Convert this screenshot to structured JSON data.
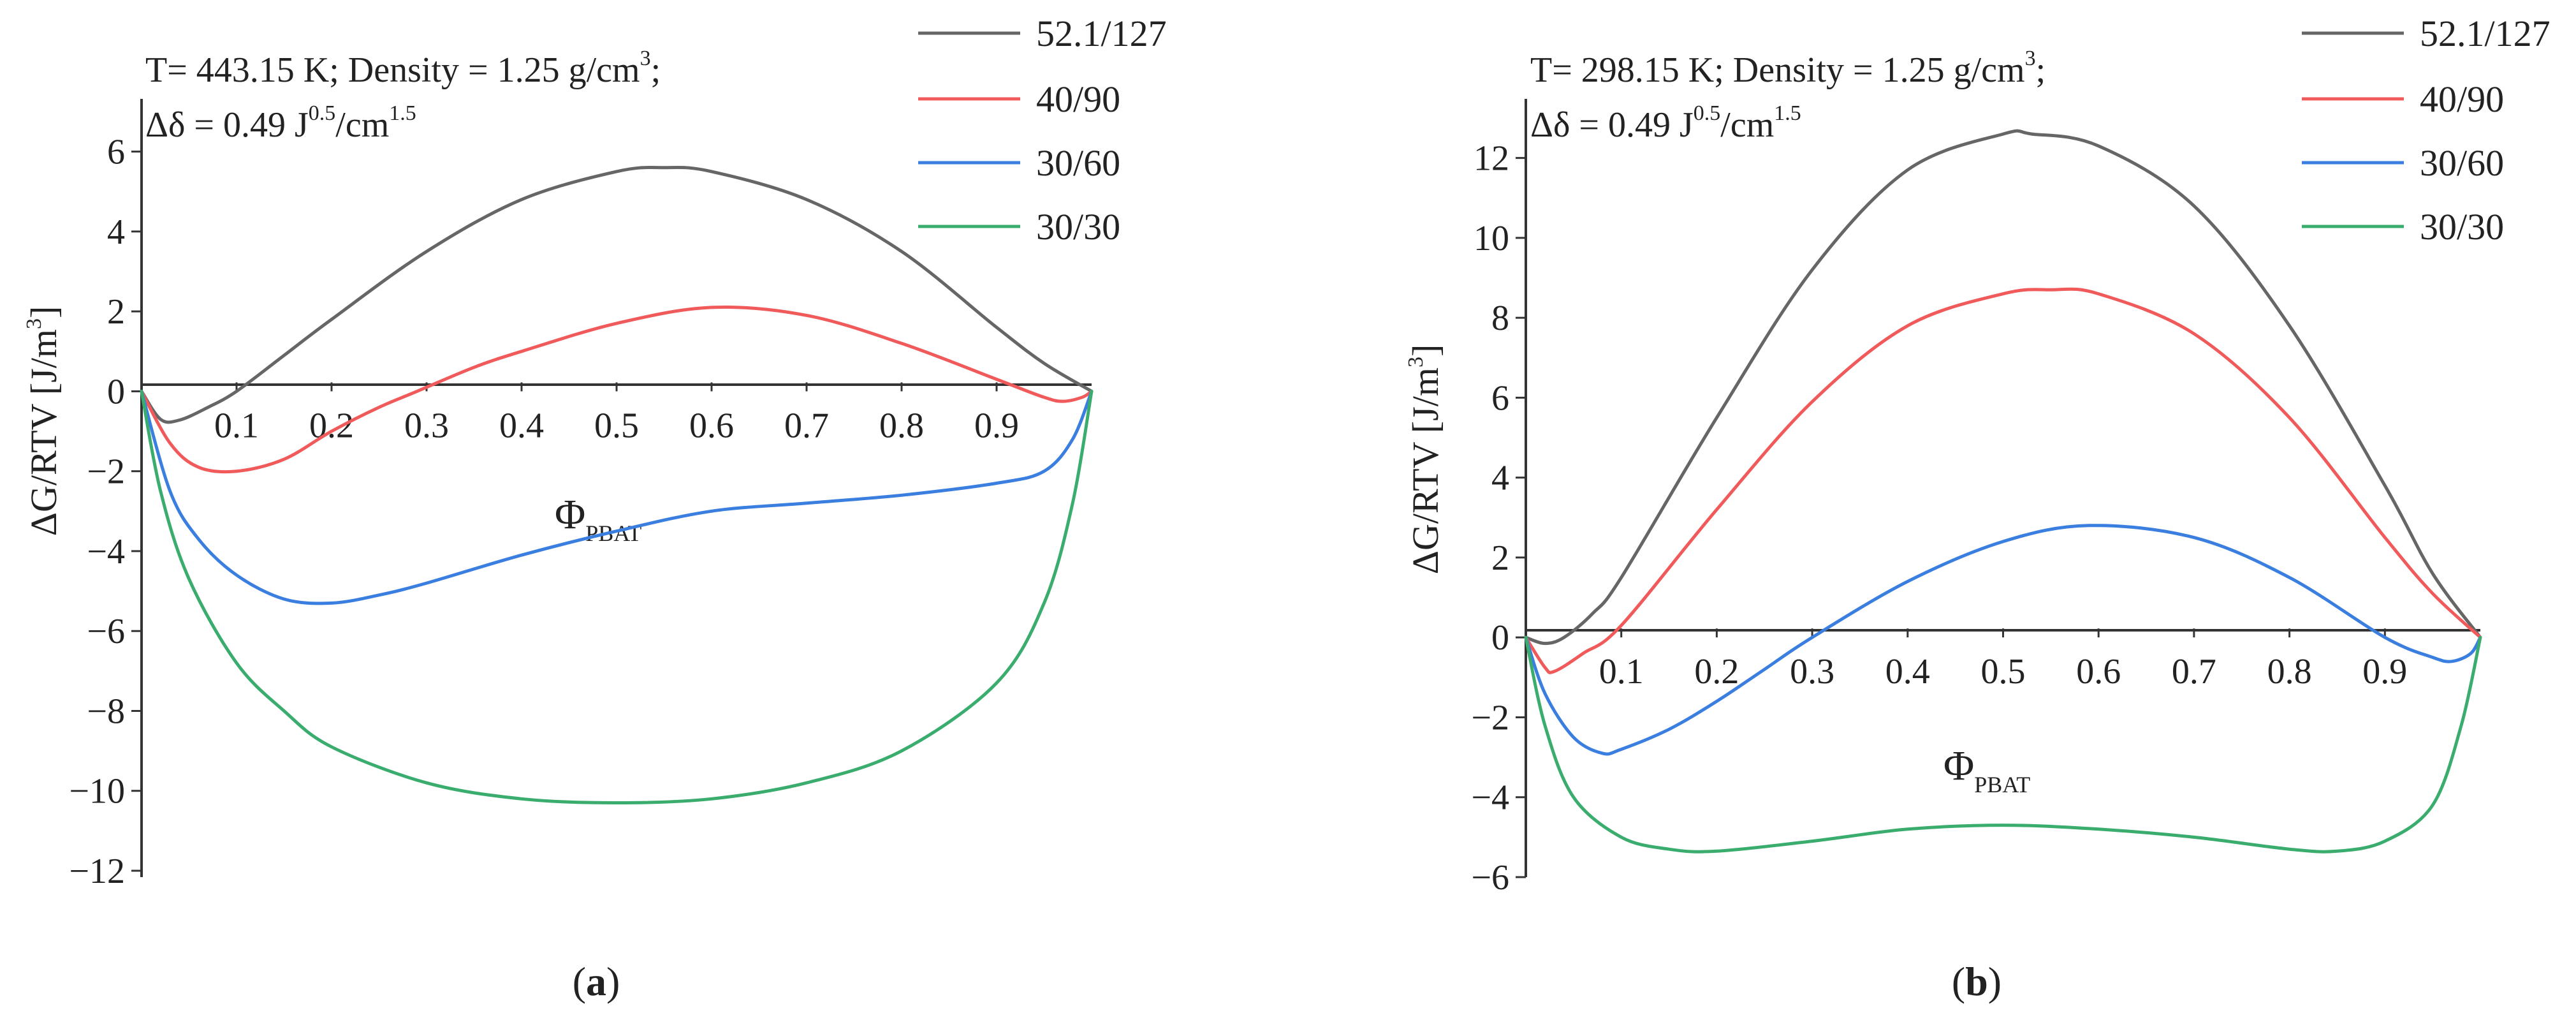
{
  "chart_data": [
    {
      "type": "line",
      "panel_label": {
        "open": "(",
        "letter": "a",
        "close": ")"
      },
      "annotation": {
        "line1_prefix": "T= 443.15 K; Density = 1.25 g/cm",
        "line1_sup": "3",
        "line1_suffix": ";",
        "line2_prefix": "Δδ = 0.49 J",
        "line2_sup1": "0.5",
        "line2_mid": "/cm",
        "line2_sup2": "1.5"
      },
      "ylabel": {
        "main": "ΔG/RTV [J/m",
        "sup": "3",
        "close": "]"
      },
      "xlabel": {
        "main": "Φ",
        "sub": "PBAT"
      },
      "xlim": [
        0,
        1
      ],
      "ylim": [
        -12,
        7
      ],
      "x_ticks": [
        0.1,
        0.2,
        0.3,
        0.4,
        0.5,
        0.6,
        0.7,
        0.8,
        0.9
      ],
      "x_tick_labels": [
        "0.1",
        "0.2",
        "0.3",
        "0.4",
        "0.5",
        "0.6",
        "0.7",
        "0.8",
        "0.9"
      ],
      "y_ticks": [
        6,
        4,
        2,
        0,
        -2,
        -4,
        -6,
        -8,
        -10,
        -12
      ],
      "y_tick_labels": [
        "6",
        "4",
        "2",
        "0",
        "−2",
        "−4",
        "−6",
        "−8",
        "−10",
        "−12"
      ],
      "series": [
        {
          "name": "52.1/127",
          "color": "#666666",
          "x": [
            0,
            0.02,
            0.04,
            0.07,
            0.1,
            0.15,
            0.2,
            0.3,
            0.4,
            0.5,
            0.55,
            0.6,
            0.7,
            0.8,
            0.9,
            0.95,
            1.0
          ],
          "y": [
            0,
            -0.7,
            -0.72,
            -0.4,
            0.0,
            0.9,
            1.8,
            3.5,
            4.8,
            5.5,
            5.6,
            5.5,
            4.8,
            3.5,
            1.6,
            0.7,
            0
          ]
        },
        {
          "name": "40/90",
          "color": "#f05a5a",
          "x": [
            0,
            0.03,
            0.06,
            0.1,
            0.15,
            0.2,
            0.25,
            0.29,
            0.35,
            0.4,
            0.5,
            0.6,
            0.7,
            0.8,
            0.9,
            0.95,
            0.97,
            0.99,
            1.0
          ],
          "y": [
            0,
            -1.3,
            -1.9,
            -2.0,
            -1.7,
            -1.0,
            -0.4,
            0.0,
            0.6,
            1.0,
            1.7,
            2.1,
            1.9,
            1.2,
            0.3,
            -0.15,
            -0.25,
            -0.15,
            0
          ]
        },
        {
          "name": "30/60",
          "color": "#3a7fe0",
          "x": [
            0,
            0.03,
            0.06,
            0.1,
            0.15,
            0.2,
            0.25,
            0.3,
            0.4,
            0.5,
            0.6,
            0.7,
            0.8,
            0.9,
            0.95,
            0.98,
            1.0
          ],
          "y": [
            0,
            -2.5,
            -3.7,
            -4.6,
            -5.2,
            -5.3,
            -5.1,
            -4.8,
            -4.1,
            -3.5,
            -3.0,
            -2.8,
            -2.6,
            -2.3,
            -2.0,
            -1.2,
            0
          ]
        },
        {
          "name": "30/30",
          "color": "#3aad6e",
          "x": [
            0,
            0.02,
            0.05,
            0.1,
            0.15,
            0.2,
            0.3,
            0.4,
            0.5,
            0.6,
            0.7,
            0.8,
            0.9,
            0.95,
            0.98,
            1.0
          ],
          "y": [
            0,
            -2.5,
            -4.7,
            -6.8,
            -8.0,
            -8.9,
            -9.8,
            -10.2,
            -10.3,
            -10.2,
            -9.8,
            -9.0,
            -7.3,
            -5.3,
            -2.8,
            0
          ]
        }
      ]
    },
    {
      "type": "line",
      "panel_label": {
        "open": "(",
        "letter": "b",
        "close": ")"
      },
      "annotation": {
        "line1_prefix": "T= 298.15 K; Density = 1.25 g/cm",
        "line1_sup": "3",
        "line1_suffix": ";",
        "line2_prefix": "Δδ = 0.49 J",
        "line2_sup1": "0.5",
        "line2_mid": "/cm",
        "line2_sup2": "1.5"
      },
      "ylabel": {
        "main": "ΔG/RTV [J/m",
        "sup": "3",
        "close": "]"
      },
      "xlabel": {
        "main": "Φ",
        "sub": "PBAT"
      },
      "xlim": [
        0,
        1
      ],
      "ylim": [
        -6,
        13
      ],
      "x_ticks": [
        0.1,
        0.2,
        0.3,
        0.4,
        0.5,
        0.6,
        0.7,
        0.8,
        0.9
      ],
      "x_tick_labels": [
        "0.1",
        "0.2",
        "0.3",
        "0.4",
        "0.5",
        "0.6",
        "0.7",
        "0.8",
        "0.9"
      ],
      "y_ticks": [
        12,
        10,
        8,
        6,
        4,
        2,
        0,
        -2,
        -4,
        -6
      ],
      "y_tick_labels": [
        "12",
        "10",
        "8",
        "6",
        "4",
        "2",
        "0",
        "−2",
        "−4",
        "−6"
      ],
      "series": [
        {
          "name": "52.1/127",
          "color": "#666666",
          "x": [
            0,
            0.02,
            0.04,
            0.07,
            0.1,
            0.2,
            0.3,
            0.4,
            0.5,
            0.53,
            0.6,
            0.7,
            0.8,
            0.9,
            0.95,
            1.0
          ],
          "y": [
            0,
            -0.15,
            0.0,
            0.6,
            1.5,
            5.5,
            9.2,
            11.7,
            12.6,
            12.6,
            12.3,
            10.8,
            7.8,
            3.8,
            1.6,
            0
          ]
        },
        {
          "name": "40/90",
          "color": "#f05a5a",
          "x": [
            0,
            0.02,
            0.03,
            0.06,
            0.1,
            0.2,
            0.3,
            0.4,
            0.5,
            0.55,
            0.6,
            0.7,
            0.8,
            0.9,
            0.95,
            1.0
          ],
          "y": [
            0,
            -0.75,
            -0.85,
            -0.4,
            0.3,
            3.2,
            5.9,
            7.8,
            8.6,
            8.7,
            8.6,
            7.6,
            5.5,
            2.5,
            1.1,
            0
          ]
        },
        {
          "name": "30/60",
          "color": "#3a7fe0",
          "x": [
            0,
            0.02,
            0.05,
            0.08,
            0.1,
            0.15,
            0.2,
            0.25,
            0.3,
            0.4,
            0.5,
            0.59,
            0.7,
            0.8,
            0.9,
            0.95,
            0.97,
            0.99,
            1.0
          ],
          "y": [
            0,
            -1.4,
            -2.5,
            -2.9,
            -2.8,
            -2.3,
            -1.6,
            -0.8,
            0.0,
            1.4,
            2.4,
            2.8,
            2.5,
            1.5,
            0.0,
            -0.5,
            -0.6,
            -0.4,
            0
          ]
        },
        {
          "name": "30/30",
          "color": "#3aad6e",
          "x": [
            0,
            0.02,
            0.05,
            0.1,
            0.15,
            0.2,
            0.3,
            0.4,
            0.5,
            0.6,
            0.7,
            0.8,
            0.85,
            0.9,
            0.95,
            0.98,
            1.0
          ],
          "y": [
            0,
            -2.2,
            -4.0,
            -5.0,
            -5.3,
            -5.35,
            -5.1,
            -4.8,
            -4.7,
            -4.8,
            -5.0,
            -5.3,
            -5.35,
            -5.1,
            -4.2,
            -2.2,
            0
          ]
        }
      ]
    }
  ],
  "legend": {
    "entries": [
      {
        "label": "52.1/127",
        "color": "#666666"
      },
      {
        "label": "40/90",
        "color": "#f05a5a"
      },
      {
        "label": "30/60",
        "color": "#3a7fe0"
      },
      {
        "label": "30/30",
        "color": "#3aad6e"
      }
    ]
  }
}
